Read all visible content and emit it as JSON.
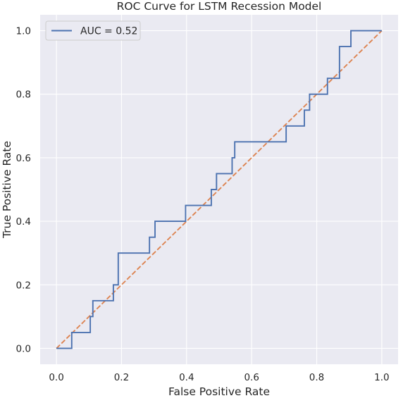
{
  "chart_data": {
    "type": "line",
    "title": "ROC Curve for LSTM Recession Model",
    "xlabel": "False Positive Rate",
    "ylabel": "True Positive Rate",
    "xlim": [
      -0.05,
      1.05
    ],
    "ylim": [
      -0.05,
      1.05
    ],
    "xticks": [
      0.0,
      0.2,
      0.4,
      0.6,
      0.8,
      1.0
    ],
    "yticks": [
      0.0,
      0.2,
      0.4,
      0.6,
      0.8,
      1.0
    ],
    "xtick_labels": [
      "0.0",
      "0.2",
      "0.4",
      "0.6",
      "0.8",
      "1.0"
    ],
    "ytick_labels": [
      "0.0",
      "0.2",
      "0.4",
      "0.6",
      "0.8",
      "1.0"
    ],
    "grid": true,
    "legend": {
      "position": "upper-left"
    },
    "series": [
      {
        "name": "AUC = 0.52",
        "color": "#4c72b0",
        "style": "solid",
        "x": [
          0.0,
          0.047,
          0.047,
          0.104,
          0.104,
          0.112,
          0.112,
          0.175,
          0.175,
          0.19,
          0.19,
          0.286,
          0.286,
          0.303,
          0.303,
          0.397,
          0.397,
          0.476,
          0.476,
          0.492,
          0.492,
          0.54,
          0.54,
          0.548,
          0.548,
          0.706,
          0.706,
          0.762,
          0.762,
          0.778,
          0.778,
          0.833,
          0.833,
          0.87,
          0.87,
          0.905,
          0.905,
          1.0
        ],
        "y": [
          0.0,
          0.0,
          0.05,
          0.05,
          0.1,
          0.1,
          0.15,
          0.15,
          0.2,
          0.2,
          0.3,
          0.3,
          0.35,
          0.35,
          0.4,
          0.4,
          0.45,
          0.45,
          0.5,
          0.5,
          0.55,
          0.55,
          0.6,
          0.6,
          0.65,
          0.65,
          0.7,
          0.7,
          0.75,
          0.75,
          0.8,
          0.8,
          0.85,
          0.85,
          0.95,
          0.95,
          1.0,
          1.0
        ]
      },
      {
        "name": "",
        "color": "#dd8452",
        "style": "dashed",
        "x": [
          0.0,
          1.0
        ],
        "y": [
          0.0,
          1.0
        ]
      }
    ]
  },
  "colors": {
    "plot_background": "#eaeaf2",
    "grid": "#ffffff",
    "text": "#262626"
  }
}
